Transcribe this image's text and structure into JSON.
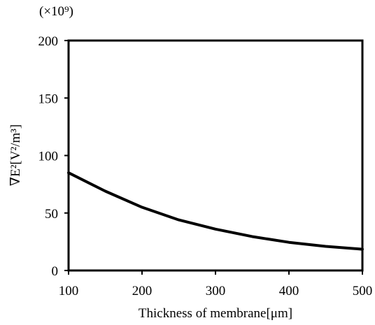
{
  "chart_data": {
    "type": "line",
    "title": "",
    "xlabel": "Thickness of  membrane[μm]",
    "ylabel": "∇E²[V²/m³]",
    "y_scale_note": "(×10⁹)",
    "xlim": [
      100,
      500
    ],
    "ylim": [
      0,
      200
    ],
    "x_ticks": [
      100,
      200,
      300,
      400,
      500
    ],
    "y_ticks": [
      0,
      50,
      100,
      150,
      200
    ],
    "x_tick_labels": [
      "100",
      "200",
      "300",
      "400",
      "500"
    ],
    "y_tick_labels": [
      "0",
      "50",
      "100",
      "150",
      "200"
    ],
    "grid": false,
    "legend": "none",
    "series": [
      {
        "color": "#000000",
        "x": [
          100,
          150,
          200,
          250,
          300,
          350,
          400,
          450,
          500
        ],
        "y": [
          85,
          69,
          55,
          44,
          36,
          29.5,
          24.5,
          21,
          18.5
        ]
      }
    ]
  }
}
